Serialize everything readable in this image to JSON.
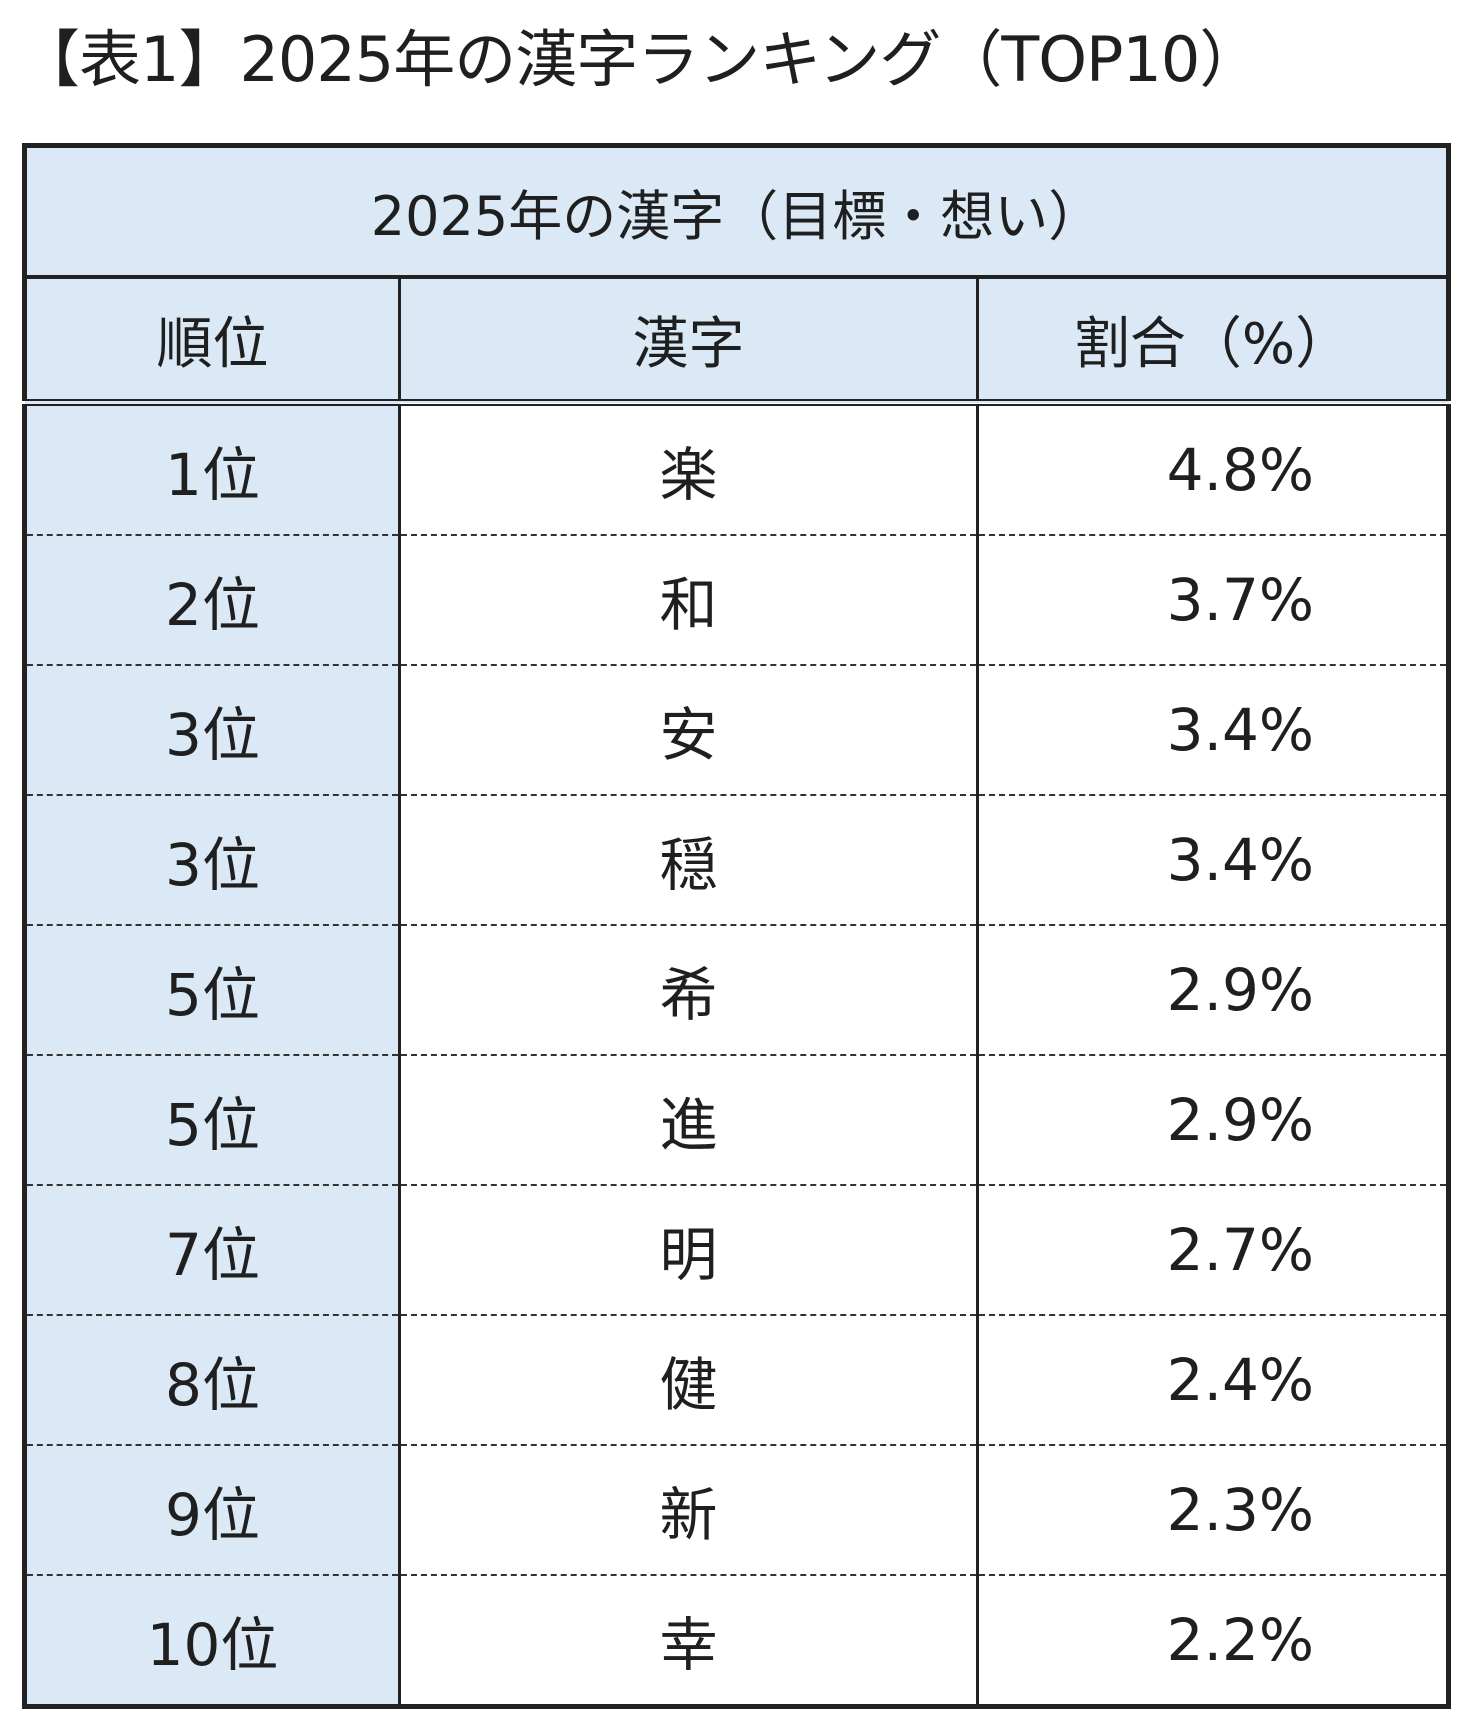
{
  "title": "【表1】2025年の漢字ランキング（TOP10）",
  "chart_data": {
    "type": "table",
    "caption": "2025年の漢字（目標・想い）",
    "columns": [
      "順位",
      "漢字",
      "割合（%）"
    ],
    "rows": [
      {
        "rank": "1位",
        "kanji": "楽",
        "percent": "4.8%"
      },
      {
        "rank": "2位",
        "kanji": "和",
        "percent": "3.7%"
      },
      {
        "rank": "3位",
        "kanji": "安",
        "percent": "3.4%"
      },
      {
        "rank": "3位",
        "kanji": "穏",
        "percent": "3.4%"
      },
      {
        "rank": "5位",
        "kanji": "希",
        "percent": "2.9%"
      },
      {
        "rank": "5位",
        "kanji": "進",
        "percent": "2.9%"
      },
      {
        "rank": "7位",
        "kanji": "明",
        "percent": "2.7%"
      },
      {
        "rank": "8位",
        "kanji": "健",
        "percent": "2.4%"
      },
      {
        "rank": "9位",
        "kanji": "新",
        "percent": "2.3%"
      },
      {
        "rank": "10位",
        "kanji": "幸",
        "percent": "2.2%"
      }
    ]
  },
  "colors": {
    "header_fill": "#dbe8f5",
    "rank_column_fill": "#dbe8f5",
    "border": "#222222"
  }
}
